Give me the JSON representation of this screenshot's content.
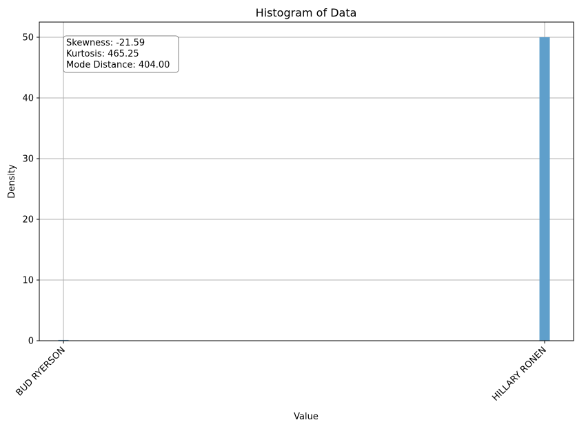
{
  "chart_data": {
    "type": "bar",
    "title": "Histogram of Data",
    "xlabel": "Value",
    "ylabel": "Density",
    "categories": [
      "BUD RYERSON",
      "HILLARY RONEN"
    ],
    "values": [
      0.12,
      50
    ],
    "ylim": [
      0,
      52.5
    ],
    "y_ticks": [
      0,
      10,
      20,
      30,
      40,
      50
    ],
    "grid": true,
    "bar_color": "#5f9fcb",
    "stats_box": {
      "lines": [
        "Skewness: -21.59",
        "Kurtosis: 465.25",
        "Mode Distance: 404.00"
      ],
      "placement": "top-left"
    }
  }
}
